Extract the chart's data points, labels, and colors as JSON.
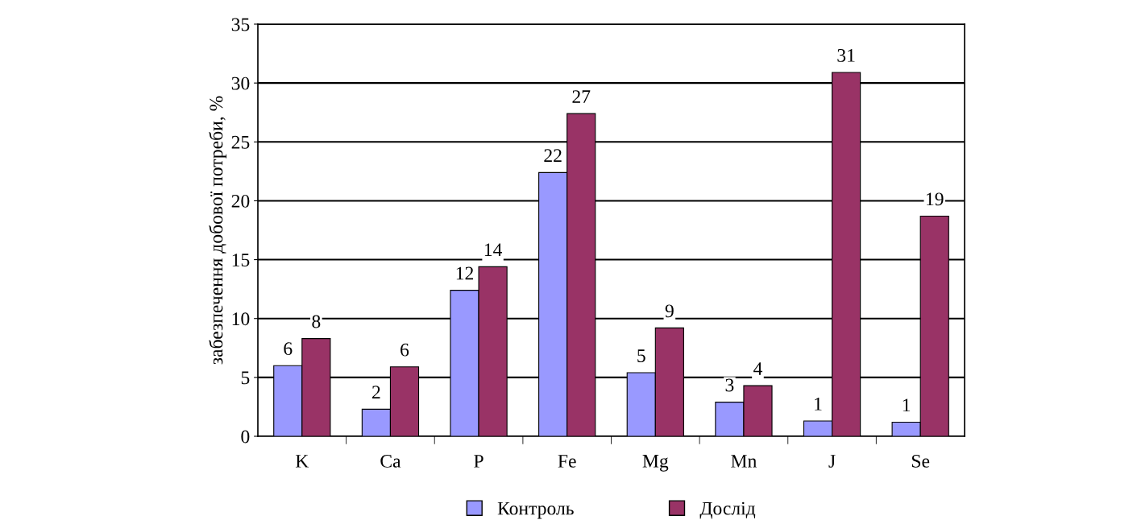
{
  "chart_data": {
    "type": "bar",
    "ylabel": "забезпечення добової потреби, %",
    "categories": [
      "K",
      "Ca",
      "P",
      "Fe",
      "Mg",
      "Mn",
      "J",
      "Se"
    ],
    "series": [
      {
        "name": "Контроль",
        "color": "#9999ff",
        "values": [
          6.0,
          2.3,
          12.4,
          22.4,
          5.4,
          2.9,
          1.3,
          1.2
        ],
        "value_labels": [
          "6",
          "2",
          "12",
          "22",
          "5",
          "3",
          "1",
          "1"
        ]
      },
      {
        "name": "Дослід",
        "color": "#993366",
        "values": [
          8.3,
          5.9,
          14.4,
          27.4,
          9.2,
          4.3,
          30.9,
          18.7
        ],
        "value_labels": [
          "8",
          "6",
          "14",
          "27",
          "9",
          "4",
          "31",
          "19"
        ]
      }
    ],
    "ylim": [
      0,
      35
    ],
    "yticks": [
      0,
      5,
      10,
      15,
      20,
      25,
      30,
      35
    ],
    "grid": "y",
    "legend": "bottom"
  }
}
